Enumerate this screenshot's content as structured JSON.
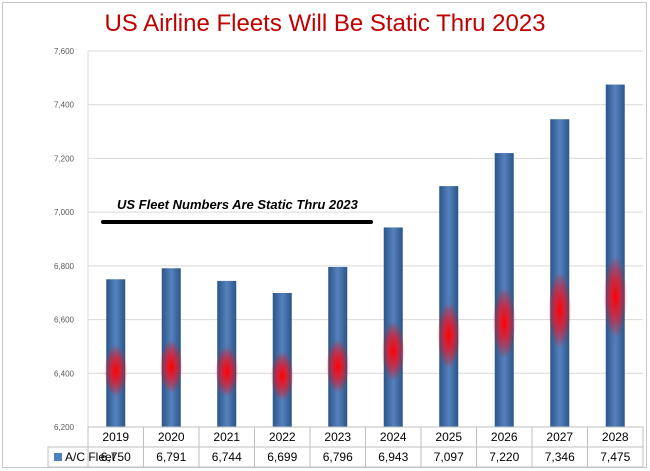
{
  "chart_data": {
    "type": "bar",
    "title": "US Airline Fleets Will Be Static Thru 2023",
    "categories": [
      "2019",
      "2020",
      "2021",
      "2022",
      "2023",
      "2024",
      "2025",
      "2026",
      "2027",
      "2028"
    ],
    "series": [
      {
        "name": "A/C Fleet",
        "values": [
          6750,
          6791,
          6744,
          6699,
          6796,
          6943,
          7097,
          7220,
          7346,
          7475
        ],
        "value_labels": [
          "6,750",
          "6,791",
          "6,744",
          "6,699",
          "6,796",
          "6,943",
          "7,097",
          "7,220",
          "7,346",
          "7,475"
        ]
      }
    ],
    "ylim": [
      6200,
      7600
    ],
    "yticks": [
      "6,200",
      "6,400",
      "6,600",
      "6,800",
      "7,000",
      "7,200",
      "7,400",
      "7,600"
    ],
    "ytick_values": [
      6200,
      6400,
      6600,
      6800,
      7000,
      7200,
      7400,
      7600
    ],
    "grid": true,
    "data_table": true,
    "annotation": "US Fleet Numbers Are Static Thru 2023",
    "colors": {
      "bar_edge": "#2e5a8c",
      "bar_center": "#4f81bd",
      "glow": "#ff0000",
      "title": "#c00000",
      "grid": "#d9d9d9"
    }
  }
}
